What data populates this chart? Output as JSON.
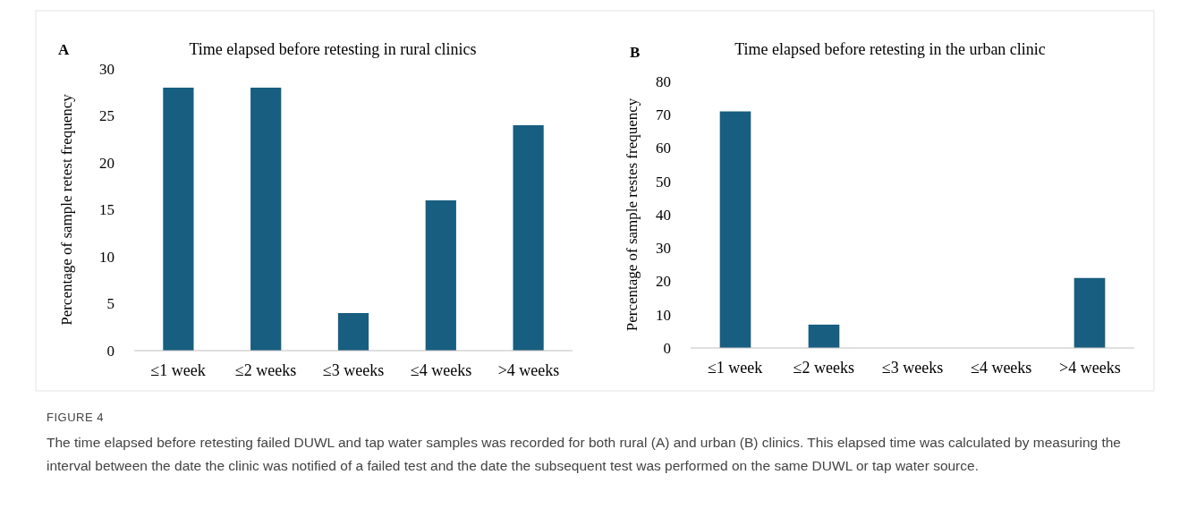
{
  "chart_data": [
    {
      "type": "bar",
      "title": "Time elapsed before retesting in rural clinics",
      "ylabel": "Percentage of sample retest frequency",
      "categories": [
        "≤1 week",
        "≤2 weeks",
        "≤3 weeks",
        "≤4 weeks",
        ">4 weeks"
      ],
      "values": [
        28,
        28,
        4,
        16,
        24
      ],
      "color": "#175e80",
      "ylim": [
        0,
        30
      ],
      "yticks": [
        0,
        5,
        10,
        15,
        20,
        25,
        30
      ],
      "grid": false,
      "legend": false,
      "annotations": [
        "A"
      ]
    },
    {
      "type": "bar",
      "title": "Time elapsed before retesting in the urban clinic",
      "ylabel": "Percentage of sample restes frequency",
      "categories": [
        "≤1 week",
        "≤2 weeks",
        "≤3 weeks",
        "≤4 weeks",
        ">4 weeks"
      ],
      "values": [
        71,
        7,
        0,
        0,
        21
      ],
      "color": "#175e80",
      "ylim": [
        0,
        80
      ],
      "yticks": [
        0,
        10,
        20,
        30,
        40,
        50,
        60,
        70,
        80
      ],
      "grid": false,
      "legend": false,
      "annotations": [
        "B",
        "FIGURE 4",
        "The time elapsed before retesting failed DUWL and tap water samples was recorded for both rural (A) and urban (B) clinics. This elapsed time was calculated by measuring the interval between the date the clinic was notified of a failed test and the date the subsequent test was performed on the same DUWL or tap water source."
      ]
    }
  ]
}
